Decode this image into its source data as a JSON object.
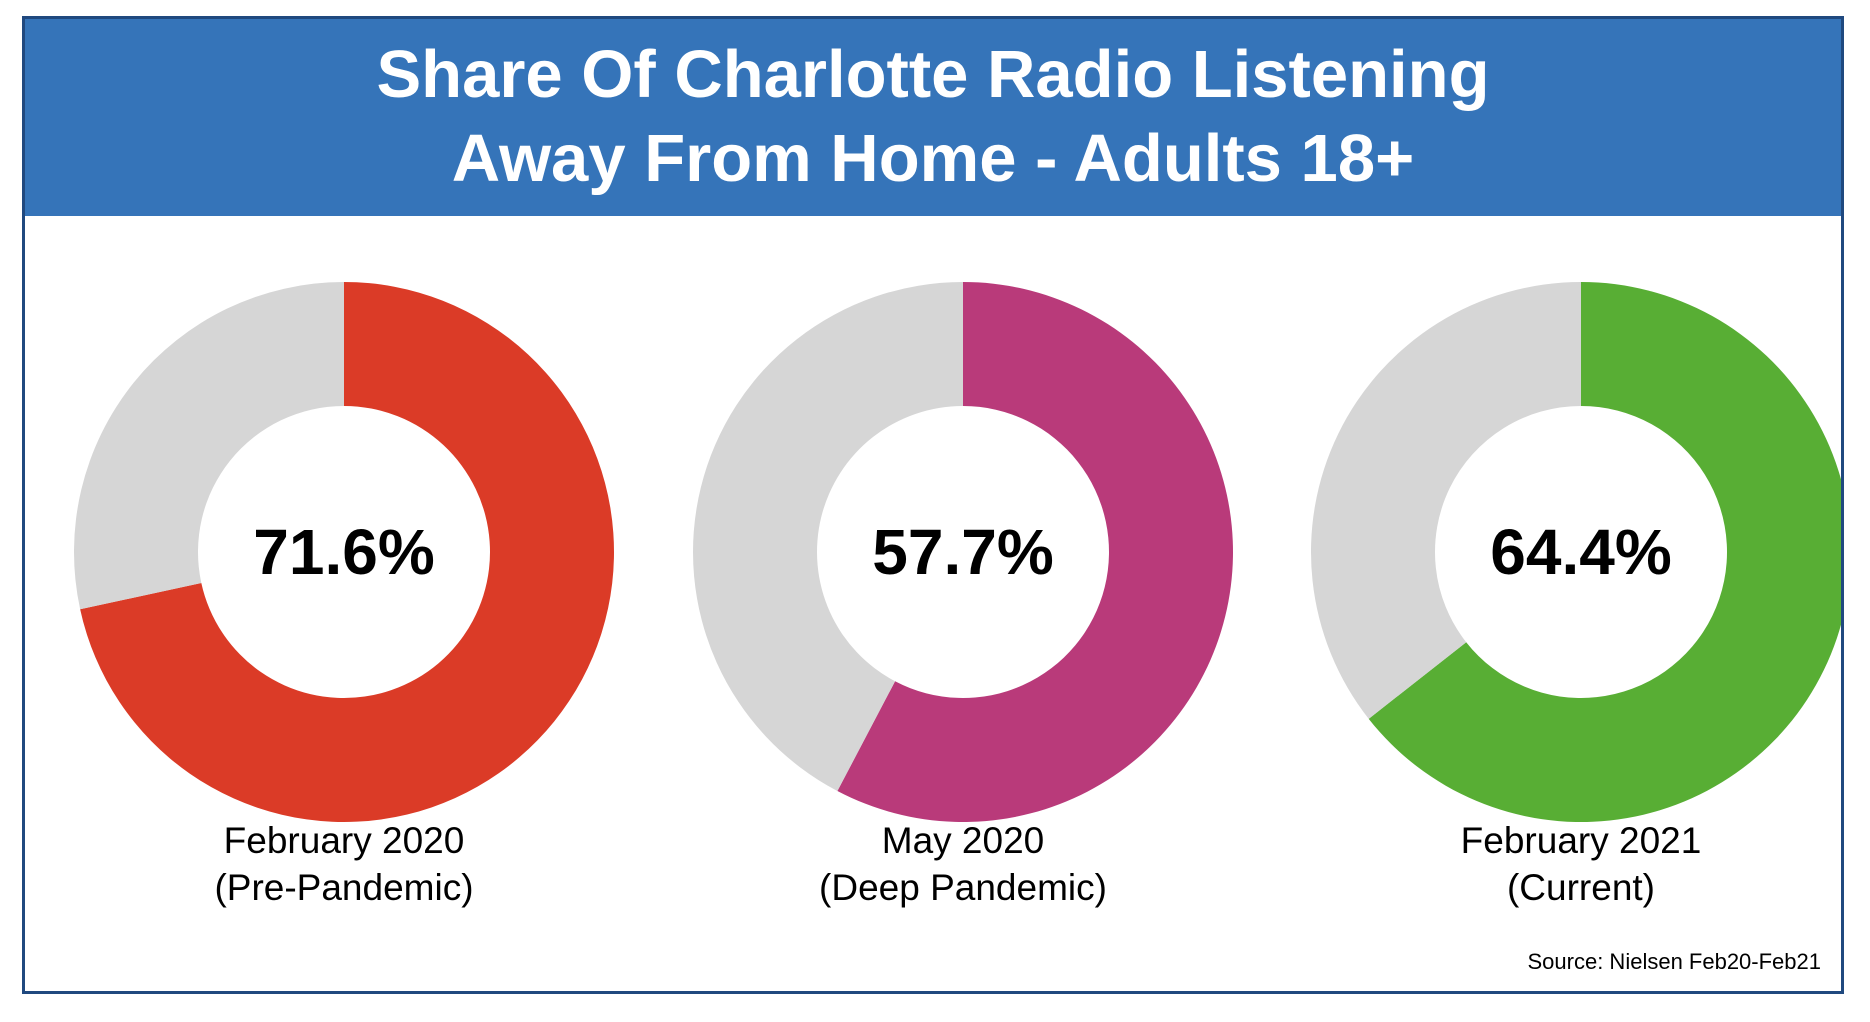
{
  "title_lines": [
    "Share Of Charlotte Radio Listening",
    "Away From Home - Adults 18+"
  ],
  "source": "Source: Nielsen Feb20-Feb21",
  "colors": {
    "header": "#3574b9",
    "border": "#20497f",
    "remainder": "#d6d6d6"
  },
  "chart_data": {
    "type": "pie",
    "style": "donut",
    "charts": [
      {
        "value": 71.6,
        "value_label": "71.6%",
        "label_line1": "February 2020",
        "label_line2": "(Pre-Pandemic)",
        "color": "#db3b27"
      },
      {
        "value": 57.7,
        "value_label": "57.7%",
        "label_line1": "May 2020",
        "label_line2": "(Deep Pandemic)",
        "color": "#b93a7a"
      },
      {
        "value": 64.4,
        "value_label": "64.4%",
        "label_line1": "February 2021",
        "label_line2": "(Current)",
        "color": "#58ae34"
      }
    ]
  }
}
